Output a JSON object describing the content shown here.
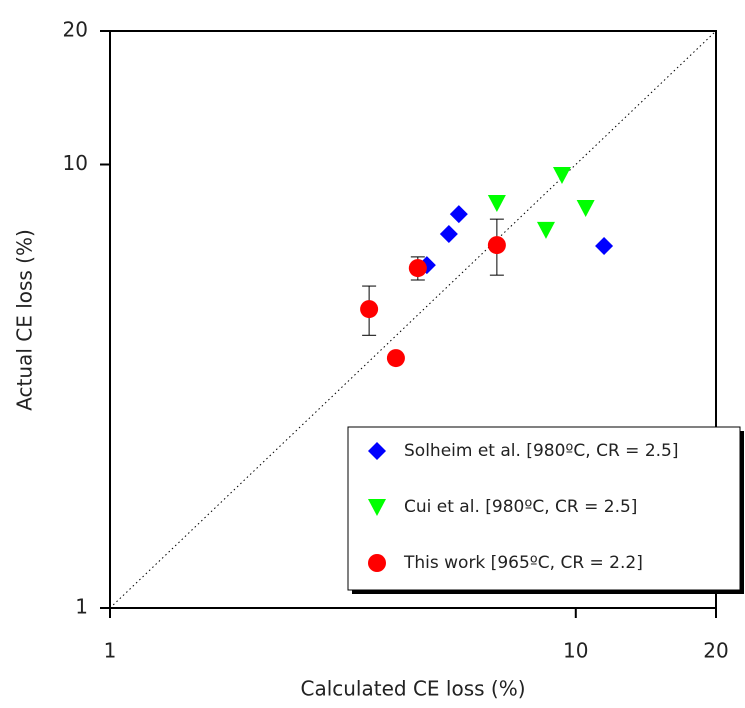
{
  "chart_data": {
    "type": "scatter",
    "x_label": "Calculated CE loss (%)",
    "y_label": "Actual CE loss (%)",
    "xlim": [
      1,
      20
    ],
    "ylim": [
      1,
      20
    ],
    "xticks": [
      1,
      10,
      20
    ],
    "yticks": [
      1,
      10,
      20
    ],
    "log_x": true,
    "log_y": true,
    "legend": "lower right",
    "diagonal": true,
    "series": [
      {
        "name": "Solheim et al. [980ºC, CR = 2.5]",
        "color": "#0000ff",
        "marker": "diamond",
        "x": [
          4.79,
          5.34,
          5.61,
          11.5
        ],
        "values": [
          5.93,
          6.97,
          7.73,
          6.55
        ]
      },
      {
        "name": "Cui et al. [980ºC, CR = 2.5]",
        "color": "#00ff00",
        "marker": "triangle-down",
        "x": [
          6.77,
          8.63,
          9.34,
          10.5
        ],
        "values": [
          8.19,
          7.12,
          9.47,
          7.98
        ]
      },
      {
        "name": "This work [965ºC, CR = 2.2]",
        "color": "#ff0000",
        "marker": "circle",
        "x": [
          3.6,
          4.11,
          4.58,
          6.77
        ],
        "values": [
          4.72,
          3.66,
          5.84,
          6.58
        ],
        "error": [
          0.6,
          null,
          0.35,
          0.95
        ]
      }
    ]
  }
}
